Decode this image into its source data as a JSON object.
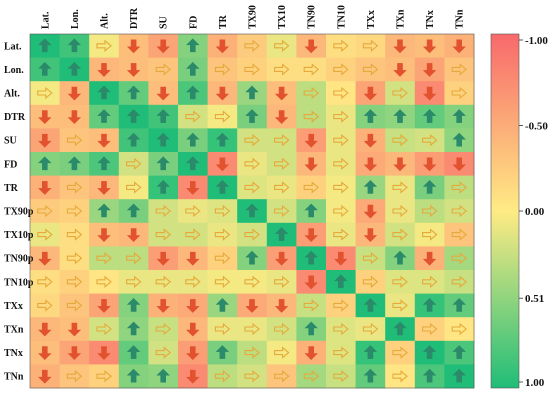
{
  "chart_data": {
    "type": "heatmap",
    "title": "",
    "variables": [
      "Lat.",
      "Lon.",
      "Alt.",
      "DTR",
      "SU",
      "FD",
      "TR",
      "TX90p",
      "TX10p",
      "TN90p",
      "TN10p",
      "TXx",
      "TXn",
      "TNx",
      "TNn"
    ],
    "column_labels": [
      "Lat.",
      "Lon.",
      "Alt.",
      "DTR",
      "SU",
      "FD",
      "TR",
      "TX90",
      "TX10",
      "TN90",
      "TN10",
      "TXx",
      "TXn",
      "TNx",
      "TNn"
    ],
    "colorbar": {
      "ticks": [
        -1.0,
        -0.5,
        0.0,
        0.51,
        1.0
      ],
      "tick_labels": [
        "-1.00",
        "-0.50",
        "0.00",
        "0.51",
        "1.00"
      ],
      "colors": {
        "neg": "#f8696b",
        "mid": "#ffeb84",
        "pos": "#1fbd78"
      },
      "placement": "right"
    },
    "arrow_colors": {
      "up": "#2a8a6a",
      "down": "#e2522f",
      "neutral": "#e6a93a"
    },
    "values": [
      [
        1.0,
        0.85,
        0.05,
        -0.35,
        -0.55,
        0.55,
        -0.45,
        -0.25,
        0.1,
        -0.4,
        -0.1,
        -0.15,
        -0.4,
        -0.35,
        -0.45
      ],
      [
        0.85,
        1.0,
        -0.4,
        -0.35,
        -0.3,
        0.6,
        -0.3,
        -0.2,
        -0.1,
        -0.1,
        -0.2,
        -0.3,
        -0.35,
        -0.55,
        -0.3
      ],
      [
        0.05,
        -0.4,
        1.0,
        0.7,
        -0.35,
        0.8,
        -0.4,
        0.45,
        -0.35,
        0.3,
        -0.05,
        -0.55,
        0.2,
        -0.75,
        -0.2
      ],
      [
        -0.35,
        -0.35,
        0.7,
        1.0,
        0.85,
        0.2,
        0.05,
        0.6,
        -0.4,
        0.3,
        0.1,
        0.55,
        0.5,
        0.7,
        0.55
      ],
      [
        -0.55,
        -0.3,
        -0.35,
        0.85,
        1.0,
        0.6,
        0.9,
        0.2,
        0.2,
        -0.6,
        0.1,
        -0.45,
        0.25,
        0.2,
        0.5
      ],
      [
        0.55,
        0.6,
        0.8,
        0.2,
        0.6,
        1.0,
        -0.75,
        0.1,
        0.2,
        -0.4,
        0.1,
        -0.5,
        -0.4,
        -0.6,
        -0.75
      ],
      [
        -0.45,
        -0.3,
        -0.4,
        0.05,
        0.9,
        -0.75,
        1.0,
        0.15,
        0.1,
        -0.2,
        0.05,
        0.45,
        0.1,
        0.6,
        0.3
      ],
      [
        -0.25,
        -0.2,
        0.45,
        0.6,
        0.2,
        0.1,
        0.15,
        1.0,
        0.2,
        0.55,
        0.05,
        -0.5,
        0.1,
        0.3,
        0.2
      ],
      [
        0.1,
        -0.1,
        -0.35,
        -0.4,
        0.2,
        0.2,
        0.1,
        0.2,
        1.0,
        -0.6,
        0.1,
        -0.4,
        0.2,
        0.05,
        -0.3
      ],
      [
        -0.4,
        -0.1,
        0.3,
        0.3,
        -0.6,
        -0.4,
        -0.2,
        0.55,
        -0.6,
        1.0,
        -0.75,
        0.25,
        0.55,
        -0.45,
        0.4
      ],
      [
        -0.1,
        -0.2,
        -0.05,
        0.1,
        0.1,
        0.1,
        0.05,
        0.05,
        0.1,
        -0.75,
        1.0,
        -0.2,
        0.15,
        0.15,
        0.25
      ],
      [
        -0.15,
        -0.3,
        -0.55,
        0.55,
        -0.45,
        -0.5,
        0.45,
        -0.5,
        -0.4,
        0.25,
        -0.2,
        1.0,
        0.1,
        0.9,
        0.7
      ],
      [
        -0.4,
        -0.35,
        0.2,
        0.5,
        0.25,
        -0.4,
        0.1,
        0.1,
        0.2,
        0.55,
        0.15,
        0.1,
        1.0,
        -0.2,
        -0.05
      ],
      [
        -0.35,
        -0.55,
        -0.75,
        0.7,
        0.2,
        -0.6,
        0.6,
        0.3,
        0.05,
        -0.45,
        0.15,
        0.9,
        -0.2,
        1.0,
        0.8
      ],
      [
        -0.45,
        -0.3,
        -0.2,
        0.55,
        0.5,
        -0.75,
        0.3,
        0.2,
        -0.3,
        0.4,
        0.25,
        0.7,
        -0.05,
        0.8,
        1.0
      ]
    ]
  }
}
